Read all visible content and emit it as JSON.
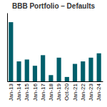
{
  "chart_data": {
    "type": "bar",
    "title": "BBB Portfolio – Defaults",
    "categories": [
      "Jan-13",
      "Jan-14",
      "Jan-15",
      "Jan-16",
      "Jan-17",
      "Jan-18",
      "Jan-19",
      "Oct-20",
      "Jan-21",
      "Jan-22",
      "Jan-23",
      "Jan-24"
    ],
    "values": [
      9.5,
      3.2,
      3.5,
      2.5,
      4.2,
      1.0,
      3.8,
      0.7,
      2.8,
      3.2,
      3.8,
      4.5
    ],
    "color": "#005f6b",
    "ylim": [
      0,
      11
    ],
    "grid": false,
    "tick_labels": "x"
  }
}
